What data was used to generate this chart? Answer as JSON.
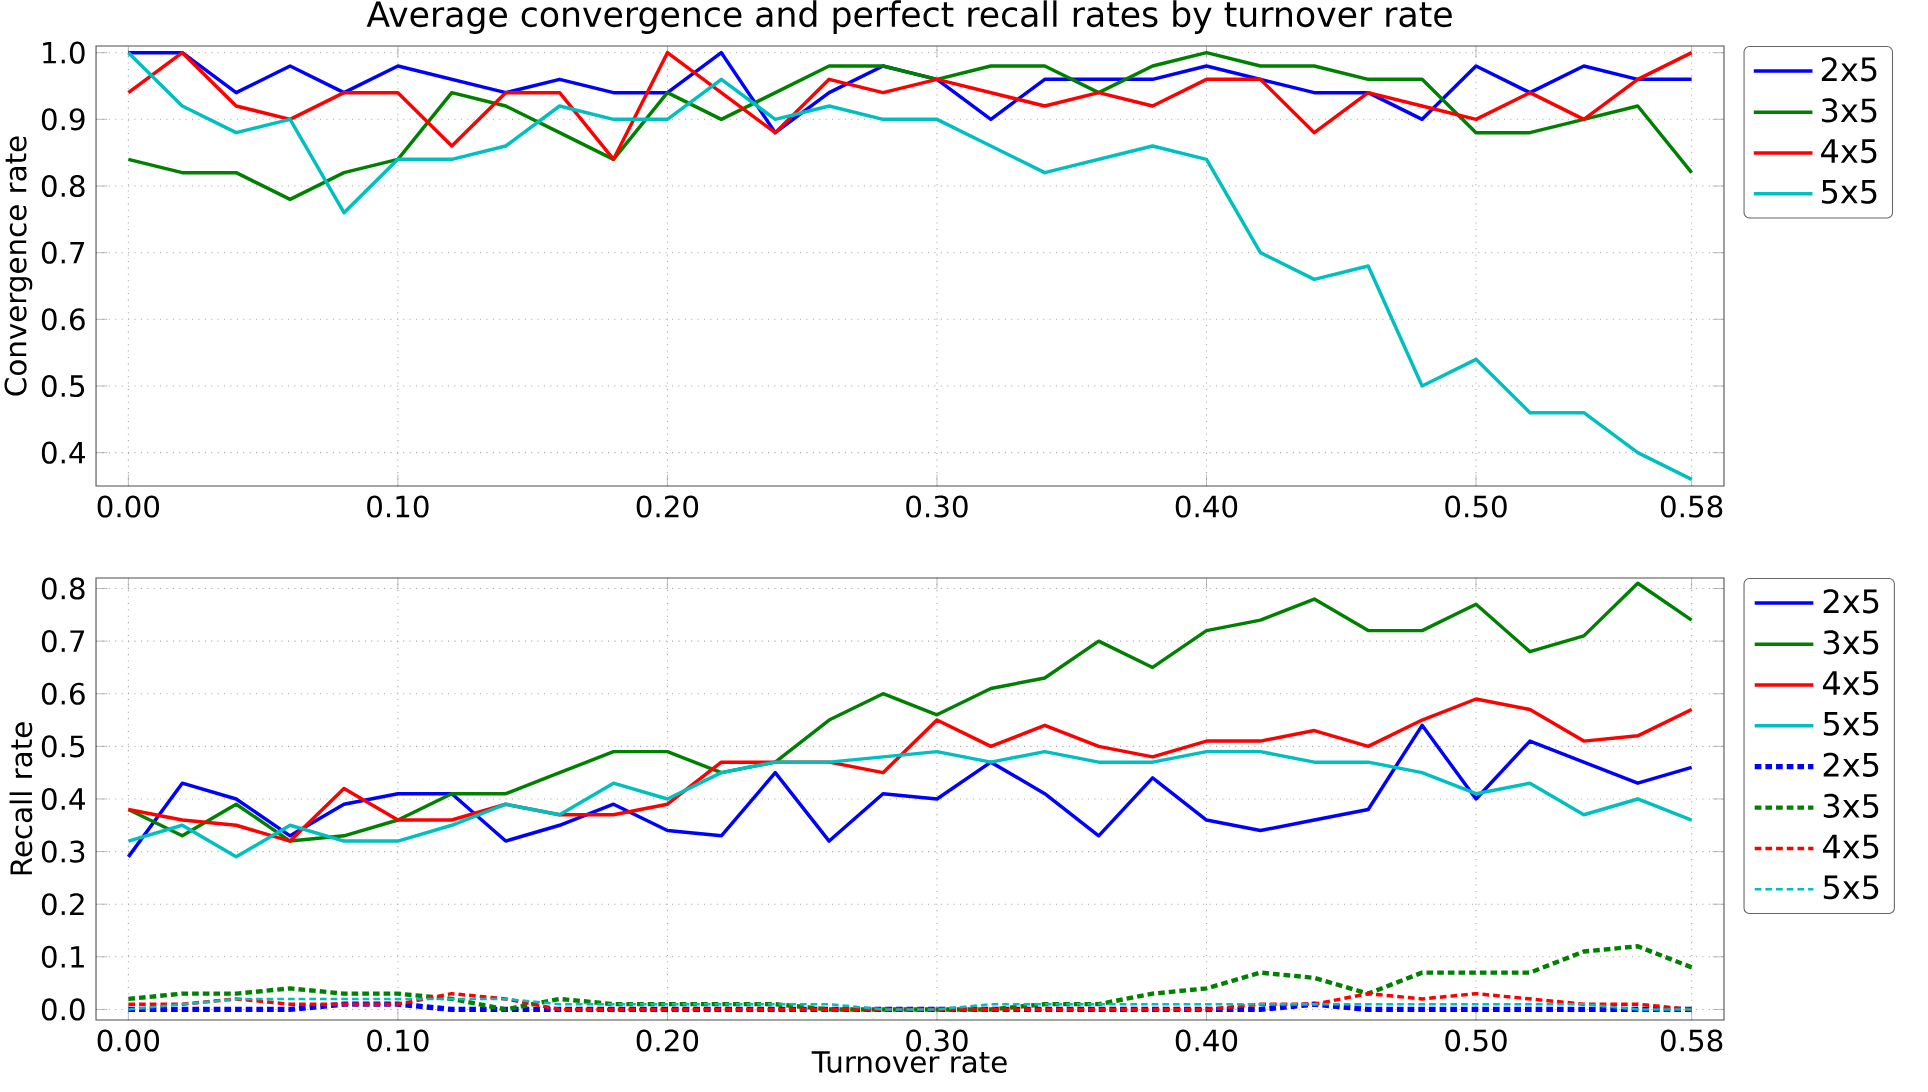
{
  "chart_data": [
    {
      "type": "line",
      "title": "Average convergence and perfect recall rates by turnover rate",
      "ylabel": "Convergence rate",
      "x": [
        0,
        0.02,
        0.04,
        0.06,
        0.08,
        0.1,
        0.12,
        0.14,
        0.16,
        0.18,
        0.2,
        0.22,
        0.24,
        0.26,
        0.28,
        0.3,
        0.32,
        0.34,
        0.36,
        0.38,
        0.4,
        0.42,
        0.44,
        0.46,
        0.48,
        0.5,
        0.52,
        0.54,
        0.56,
        0.58
      ],
      "xlim": [
        -0.012,
        0.592
      ],
      "ylim": [
        0.35,
        1.01
      ],
      "xticks": [
        {
          "value": 0,
          "label": "0.00"
        },
        {
          "value": 0.1,
          "label": "0.10"
        },
        {
          "value": 0.2,
          "label": "0.20"
        },
        {
          "value": 0.3,
          "label": "0.30"
        },
        {
          "value": 0.4,
          "label": "0.40"
        },
        {
          "value": 0.5,
          "label": "0.50"
        },
        {
          "value": 0.58,
          "label": "0.58"
        }
      ],
      "yticks": [
        0.4,
        0.5,
        0.6,
        0.7,
        0.8,
        0.9,
        {
          "value": 1.0,
          "label": "1.0"
        }
      ],
      "grid": true,
      "legend": "top right",
      "series": [
        {
          "name": "2x5",
          "color": "#0000ff",
          "values": [
            1.0,
            1.0,
            0.94,
            0.98,
            0.94,
            0.98,
            0.96,
            0.94,
            0.96,
            0.94,
            0.94,
            1.0,
            0.88,
            0.94,
            0.98,
            0.96,
            0.9,
            0.96,
            0.96,
            0.96,
            0.98,
            0.96,
            0.94,
            0.94,
            0.9,
            0.98,
            0.94,
            0.98,
            0.96,
            0.96
          ]
        },
        {
          "name": "3x5",
          "color": "#008000",
          "values": [
            0.84,
            0.82,
            0.82,
            0.78,
            0.82,
            0.84,
            0.94,
            0.92,
            0.88,
            0.84,
            0.94,
            0.9,
            0.94,
            0.98,
            0.98,
            0.96,
            0.98,
            0.98,
            0.94,
            0.98,
            1.0,
            0.98,
            0.98,
            0.96,
            0.96,
            0.88,
            0.88,
            0.9,
            0.92,
            0.82
          ]
        },
        {
          "name": "4x5",
          "color": "#ff0000",
          "values": [
            0.94,
            1.0,
            0.92,
            0.9,
            0.94,
            0.94,
            0.86,
            0.94,
            0.94,
            0.84,
            1.0,
            0.94,
            0.88,
            0.96,
            0.94,
            0.96,
            0.94,
            0.92,
            0.94,
            0.92,
            0.96,
            0.96,
            0.88,
            0.94,
            0.92,
            0.9,
            0.94,
            0.9,
            0.96,
            1.0
          ]
        },
        {
          "name": "5x5",
          "color": "#00bfbf",
          "values": [
            1.0,
            0.92,
            0.88,
            0.9,
            0.76,
            0.84,
            0.84,
            0.86,
            0.92,
            0.9,
            0.9,
            0.96,
            0.9,
            0.92,
            0.9,
            0.9,
            0.86,
            0.82,
            0.84,
            0.86,
            0.84,
            0.7,
            0.66,
            0.68,
            0.5,
            0.54,
            0.46,
            0.46,
            0.4,
            0.36
          ]
        }
      ]
    },
    {
      "type": "line",
      "xlabel": "Turnover rate",
      "ylabel": "Recall rate",
      "x": [
        0,
        0.02,
        0.04,
        0.06,
        0.08,
        0.1,
        0.12,
        0.14,
        0.16,
        0.18,
        0.2,
        0.22,
        0.24,
        0.26,
        0.28,
        0.3,
        0.32,
        0.34,
        0.36,
        0.38,
        0.4,
        0.42,
        0.44,
        0.46,
        0.48,
        0.5,
        0.52,
        0.54,
        0.56,
        0.58
      ],
      "xlim": [
        -0.012,
        0.592
      ],
      "ylim": [
        -0.02,
        0.82
      ],
      "xticks": [
        {
          "value": 0,
          "label": "0.00"
        },
        {
          "value": 0.1,
          "label": "0.10"
        },
        {
          "value": 0.2,
          "label": "0.20"
        },
        {
          "value": 0.3,
          "label": "0.30"
        },
        {
          "value": 0.4,
          "label": "0.40"
        },
        {
          "value": 0.5,
          "label": "0.50"
        },
        {
          "value": 0.58,
          "label": "0.58"
        }
      ],
      "yticks": [
        {
          "value": 0,
          "label": "0.0"
        },
        0.1,
        0.2,
        0.3,
        0.4,
        0.5,
        0.6,
        0.7,
        0.8
      ],
      "grid": true,
      "legend": "top right",
      "series": [
        {
          "name": "2x5",
          "color": "#0000ff",
          "values": [
            0.29,
            0.43,
            0.4,
            0.33,
            0.39,
            0.41,
            0.41,
            0.32,
            0.35,
            0.39,
            0.34,
            0.33,
            0.45,
            0.32,
            0.41,
            0.4,
            0.47,
            0.41,
            0.33,
            0.44,
            0.36,
            0.34,
            0.36,
            0.38,
            0.54,
            0.4,
            0.51,
            0.47,
            0.43,
            0.46
          ]
        },
        {
          "name": "3x5",
          "color": "#008000",
          "values": [
            0.38,
            0.33,
            0.39,
            0.32,
            0.33,
            0.36,
            0.41,
            0.41,
            0.45,
            0.49,
            0.49,
            0.45,
            0.47,
            0.55,
            0.6,
            0.56,
            0.61,
            0.63,
            0.7,
            0.65,
            0.72,
            0.74,
            0.78,
            0.72,
            0.72,
            0.77,
            0.68,
            0.71,
            0.81,
            0.74
          ]
        },
        {
          "name": "4x5",
          "color": "#ff0000",
          "values": [
            0.38,
            0.36,
            0.35,
            0.32,
            0.42,
            0.36,
            0.36,
            0.39,
            0.37,
            0.37,
            0.39,
            0.47,
            0.47,
            0.47,
            0.45,
            0.55,
            0.5,
            0.54,
            0.5,
            0.48,
            0.51,
            0.51,
            0.53,
            0.5,
            0.55,
            0.59,
            0.57,
            0.51,
            0.52,
            0.57
          ]
        },
        {
          "name": "5x5",
          "color": "#00bfbf",
          "values": [
            0.32,
            0.35,
            0.29,
            0.35,
            0.32,
            0.32,
            0.35,
            0.39,
            0.37,
            0.43,
            0.4,
            0.45,
            0.47,
            0.47,
            0.48,
            0.49,
            0.47,
            0.49,
            0.47,
            0.47,
            0.49,
            0.49,
            0.47,
            0.47,
            0.45,
            0.41,
            0.43,
            0.37,
            0.4,
            0.36
          ]
        },
        {
          "name": "2x5",
          "color": "#0000ff",
          "line_style": "dashed",
          "values": [
            0.0,
            0.0,
            0.0,
            0.0,
            0.01,
            0.01,
            0.0,
            0.0,
            0.0,
            0.0,
            0.0,
            0.0,
            0.0,
            0.0,
            0.0,
            0.0,
            0.0,
            0.0,
            0.0,
            0.0,
            0.0,
            0.0,
            0.01,
            0.0,
            0.0,
            0.0,
            0.0,
            0.0,
            0.0,
            0.0
          ]
        },
        {
          "name": "3x5",
          "color": "#008000",
          "line_style": "dashed",
          "values": [
            0.02,
            0.03,
            0.03,
            0.04,
            0.03,
            0.03,
            0.02,
            0.0,
            0.02,
            0.01,
            0.01,
            0.01,
            0.01,
            0.0,
            0.0,
            0.0,
            0.0,
            0.01,
            0.01,
            0.03,
            0.04,
            0.07,
            0.06,
            0.03,
            0.07,
            0.07,
            0.07,
            0.11,
            0.12,
            0.08
          ]
        },
        {
          "name": "4x5",
          "color": "#ff0000",
          "line_style": "dashed",
          "values": [
            0.01,
            0.01,
            0.02,
            0.01,
            0.01,
            0.01,
            0.03,
            0.02,
            0.0,
            0.0,
            0.0,
            0.0,
            0.0,
            0.0,
            0.0,
            0.0,
            0.0,
            0.0,
            0.0,
            0.0,
            0.0,
            0.01,
            0.01,
            0.03,
            0.02,
            0.03,
            0.02,
            0.01,
            0.01,
            0.0
          ]
        },
        {
          "name": "5x5",
          "color": "#00bfbf",
          "line_style": "dashed",
          "values": [
            0.0,
            0.01,
            0.02,
            0.02,
            0.02,
            0.02,
            0.02,
            0.02,
            0.01,
            0.01,
            0.01,
            0.01,
            0.01,
            0.01,
            0.0,
            0.0,
            0.01,
            0.01,
            0.01,
            0.01,
            0.01,
            0.01,
            0.01,
            0.01,
            0.01,
            0.01,
            0.01,
            0.01,
            0.0,
            0.0
          ]
        }
      ]
    }
  ]
}
